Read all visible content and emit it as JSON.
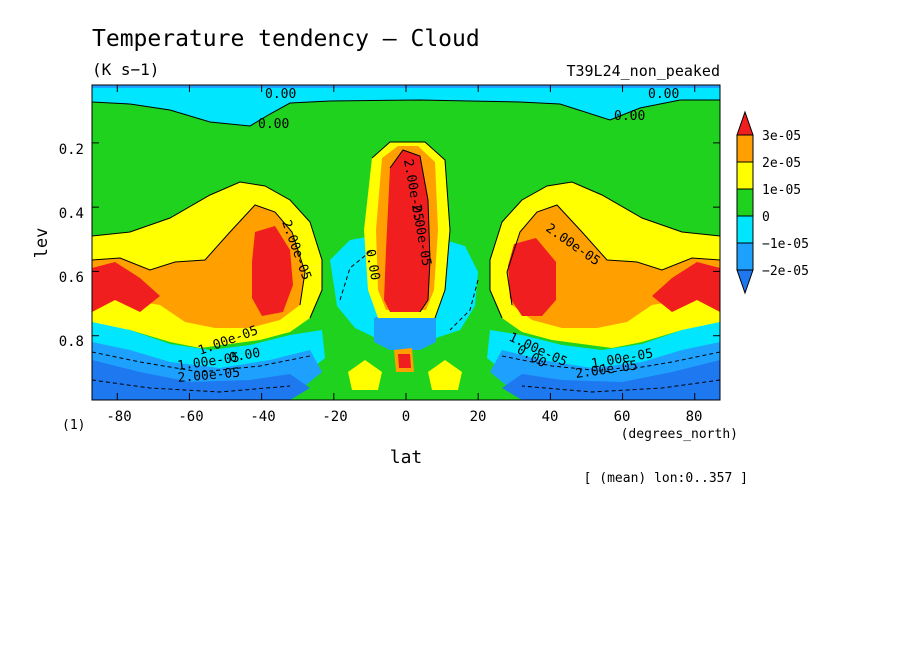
{
  "header": {
    "title": "Temperature tendency — Cloud",
    "units": "(K s−1)",
    "run_label": "T39L24_non_peaked"
  },
  "footer": {
    "mean_note": "[ (mean) lon:0..357 ]"
  },
  "colors": {
    "band_lt_m2e5": "#1e78f0",
    "band_m2e5_m1e5": "#1ea0ff",
    "band_m1e5_0": "#00e6ff",
    "band_0_1e5": "#1ed21e",
    "band_1e5_2e5": "#ffff00",
    "band_2e5_3e5": "#ffa000",
    "band_gt_3e5": "#f01e1e"
  },
  "chart_data": {
    "type": "heatmap",
    "title": "Temperature tendency — Cloud",
    "units": "(K s−1)",
    "xlabel": "lat",
    "x_unit_label": "(degrees_north)",
    "ylabel": "lev",
    "y_unit_label": "(1)",
    "xlim": [
      -87,
      87
    ],
    "ylim": [
      1.0,
      0.02
    ],
    "x_ticks": [
      "-80",
      "-60",
      "-40",
      "-20",
      "0",
      "20",
      "40",
      "60",
      "80"
    ],
    "y_ticks": [
      "0.2",
      "0.4",
      "0.6",
      "0.8"
    ],
    "colorbar": {
      "labels": [
        "3e-05",
        "2e-05",
        "1e-05",
        "0",
        "−1e-05",
        "−2e-05"
      ],
      "bands": [
        "< -2e-05",
        "-2e-05 to -1e-05",
        "-1e-05 to 0",
        "0 to 1e-05",
        "1e-05 to 2e-05",
        "2e-05 to 3e-05",
        "> 3e-05"
      ]
    },
    "contour_labels": [
      "0.00",
      "0.00",
      "0.00",
      "0.00",
      "2.00e-05",
      "2.00e-05",
      "1.00e-05",
      "1.00e-05",
      "0.00",
      "0.00",
      "2.00e-05",
      "2.00e-05",
      "1.00e-05",
      "2.00e-05",
      "0.00",
      "1.00e-05",
      "2.00e-05"
    ],
    "regions": [
      {
        "band": 0,
        "lat": [
          -87,
          87
        ],
        "lev": [
          0.02,
          0.09
        ]
      },
      {
        "band": 5,
        "lat": [
          -55,
          -28
        ],
        "lev": [
          0.43,
          0.78
        ]
      },
      {
        "band": 6,
        "lat": [
          -45,
          -33
        ],
        "lev": [
          0.52,
          0.76
        ]
      },
      {
        "band": 6,
        "lat": [
          -87,
          -70
        ],
        "lev": [
          0.6,
          0.74
        ]
      },
      {
        "band": 6,
        "lat": [
          -5,
          7
        ],
        "lev": [
          0.22,
          0.76
        ]
      },
      {
        "band": 6,
        "lat": [
          30,
          45
        ],
        "lev": [
          0.52,
          0.76
        ]
      },
      {
        "band": 6,
        "lat": [
          70,
          87
        ],
        "lev": [
          0.6,
          0.74
        ]
      },
      {
        "band": -2,
        "lat": [
          -87,
          -25
        ],
        "lev": [
          0.82,
          1.0
        ]
      },
      {
        "band": -2,
        "lat": [
          25,
          87
        ],
        "lev": [
          0.82,
          1.0
        ]
      },
      {
        "band": -2,
        "lat": [
          -8,
          8
        ],
        "lev": [
          0.76,
          0.84
        ]
      }
    ]
  }
}
